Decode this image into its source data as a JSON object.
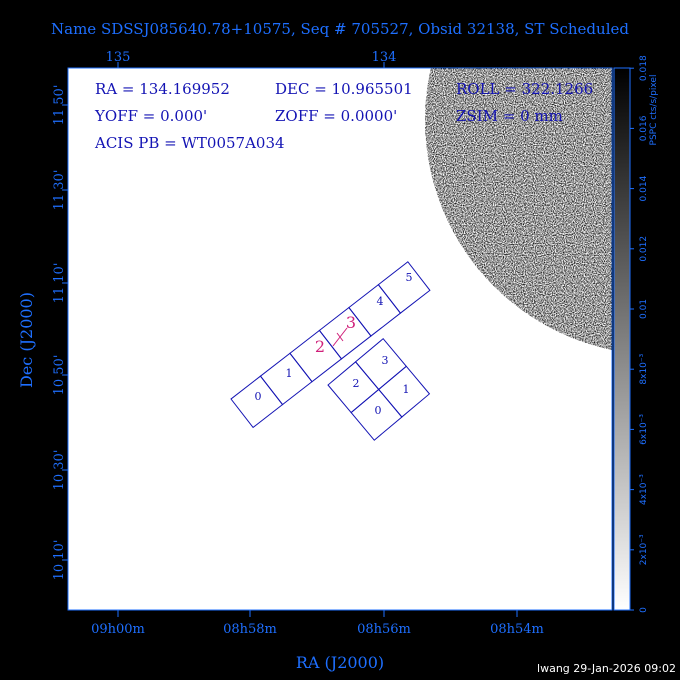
{
  "header": {
    "title": "Name SDSSJ085640.78+10575, Seq # 705527, Obsid 32138, ST Scheduled"
  },
  "top_axis": {
    "labels": [
      "135",
      "134"
    ]
  },
  "left_axis": {
    "title": "Dec (J2000)",
    "labels": [
      "11 50'",
      "11 30'",
      "11 10'",
      "10 50'",
      "10 30'",
      "10 10'"
    ]
  },
  "bottom_axis": {
    "title": "RA (J2000)",
    "labels": [
      "09h00m",
      "08h58m",
      "08h56m",
      "08h54m"
    ]
  },
  "info": {
    "lines": [
      [
        "RA = 134.169952",
        "DEC = 10.965501",
        "ROLL = 322.1266"
      ],
      [
        "YOFF =   0.000'",
        "ZOFF =  0.0000'",
        "ZSIM = 0 mm"
      ],
      [
        "ACIS PB = WT0057A034"
      ]
    ]
  },
  "colorbar": {
    "title": "PSPC cts/s/pixel",
    "labels": [
      "0",
      "2x10⁻³",
      "4x10⁻³",
      "6x10⁻³",
      "8x10⁻³",
      "0.01",
      "0.012",
      "0.014",
      "0.016",
      "0.018"
    ]
  },
  "s_array": {
    "chips": [
      "0",
      "1",
      "2",
      "3",
      "4",
      "5"
    ]
  },
  "i_array": {
    "chips": [
      "0",
      "1",
      "2",
      "3"
    ]
  },
  "footer": {
    "text": "lwang 29-Jan-2026 09:02"
  }
}
